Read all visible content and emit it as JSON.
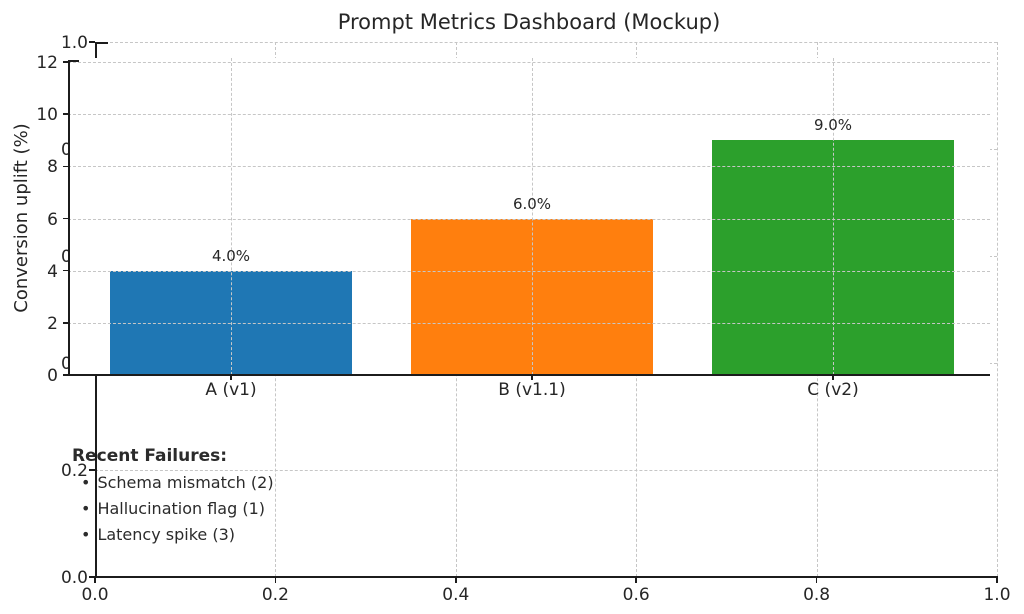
{
  "chart_data": {
    "type": "bar",
    "title": "Prompt Metrics Dashboard (Mockup)",
    "categories": [
      "A (v1)",
      "B (v1.1)",
      "C (v2)"
    ],
    "values": [
      4.0,
      6.0,
      9.0
    ],
    "bar_labels": [
      "4.0%",
      "6.0%",
      "9.0%"
    ],
    "bar_colors": [
      "#1f77b4",
      "#ff7f0e",
      "#2ca02c"
    ],
    "xlabel": "",
    "ylabel": "Conversion uplift (%)",
    "ylim": [
      0,
      12.15
    ],
    "yticks": [
      0,
      2,
      4,
      6,
      8,
      10,
      12
    ],
    "grid": "dashed, both axes, drawn over bars",
    "legend": "none",
    "outer_axis": {
      "xticks": [
        "0.0",
        "0.2",
        "0.4",
        "0.6",
        "0.8",
        "1.0"
      ],
      "yticks": [
        "0.0",
        "0.2",
        "0.4",
        "0.6",
        "0.8",
        "1.0"
      ]
    },
    "annotations": {
      "heading": "Recent Failures:",
      "bullet": "•",
      "items": [
        "Schema mismatch (2)",
        "Hallucination flag (1)",
        "Latency spike (3)"
      ]
    }
  },
  "colors": {
    "bar_blue": "#1f77b4",
    "bar_orange": "#ff7f0e",
    "bar_green": "#2ca02c",
    "gridline": "#c6c6c6",
    "spine": "#1c1c1c",
    "text": "#262626",
    "background": "#ffffff"
  }
}
